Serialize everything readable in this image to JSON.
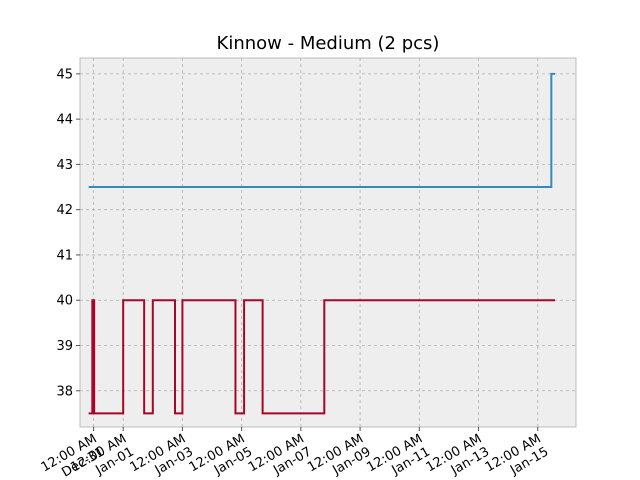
{
  "chart_data": {
    "type": "line",
    "title": "Kinnow - Medium (2 pcs)",
    "xlabel": "",
    "ylabel": "",
    "step": "post",
    "grid": true,
    "background": "#eeeeee",
    "x_range": [
      "2023-12-30T13:00",
      "2024-01-16T07:00"
    ],
    "ylim": [
      37.2,
      45.35
    ],
    "y_ticks": [
      38,
      39,
      40,
      41,
      42,
      43,
      44,
      45
    ],
    "x_ticks": [
      {
        "t": "2023-12-31T00:00",
        "label": "12:00 AM\nDec-31"
      },
      {
        "t": "2024-01-01T00:00",
        "label": "12:00 AM\nJan-01"
      },
      {
        "t": "2024-01-03T00:00",
        "label": "12:00 AM\nJan-03"
      },
      {
        "t": "2024-01-05T00:00",
        "label": "12:00 AM\nJan-05"
      },
      {
        "t": "2024-01-07T00:00",
        "label": "12:00 AM\nJan-07"
      },
      {
        "t": "2024-01-09T00:00",
        "label": "12:00 AM\nJan-09"
      },
      {
        "t": "2024-01-11T00:00",
        "label": "12:00 AM\nJan-11"
      },
      {
        "t": "2024-01-13T00:00",
        "label": "12:00 AM\nJan-13"
      },
      {
        "t": "2024-01-15T00:00",
        "label": "12:00 AM\nJan-15"
      }
    ],
    "series": [
      {
        "color": "#348abd",
        "points": [
          {
            "t": "2023-12-30T20:00",
            "y": 42.5
          },
          {
            "t": "2024-01-15T11:00",
            "y": 45
          },
          {
            "t": "2024-01-15T14:00",
            "y": 45
          }
        ]
      },
      {
        "color": "#a60628",
        "points": [
          {
            "t": "2023-12-30T20:00",
            "y": 37.5
          },
          {
            "t": "2023-12-30T23:00",
            "y": 40
          },
          {
            "t": "2023-12-30T23:30",
            "y": 37.5
          },
          {
            "t": "2023-12-31T00:00",
            "y": 40
          },
          {
            "t": "2023-12-31T00:30",
            "y": 37.5
          },
          {
            "t": "2024-01-01T00:00",
            "y": 40
          },
          {
            "t": "2024-01-01T17:00",
            "y": 37.5
          },
          {
            "t": "2024-01-02T00:00",
            "y": 40
          },
          {
            "t": "2024-01-02T18:00",
            "y": 37.5
          },
          {
            "t": "2024-01-03T00:00",
            "y": 40
          },
          {
            "t": "2024-01-04T19:00",
            "y": 37.5
          },
          {
            "t": "2024-01-05T02:00",
            "y": 40
          },
          {
            "t": "2024-01-05T17:00",
            "y": 37.5
          },
          {
            "t": "2024-01-07T19:00",
            "y": 40
          },
          {
            "t": "2024-01-15T14:00",
            "y": 40
          }
        ]
      }
    ]
  }
}
